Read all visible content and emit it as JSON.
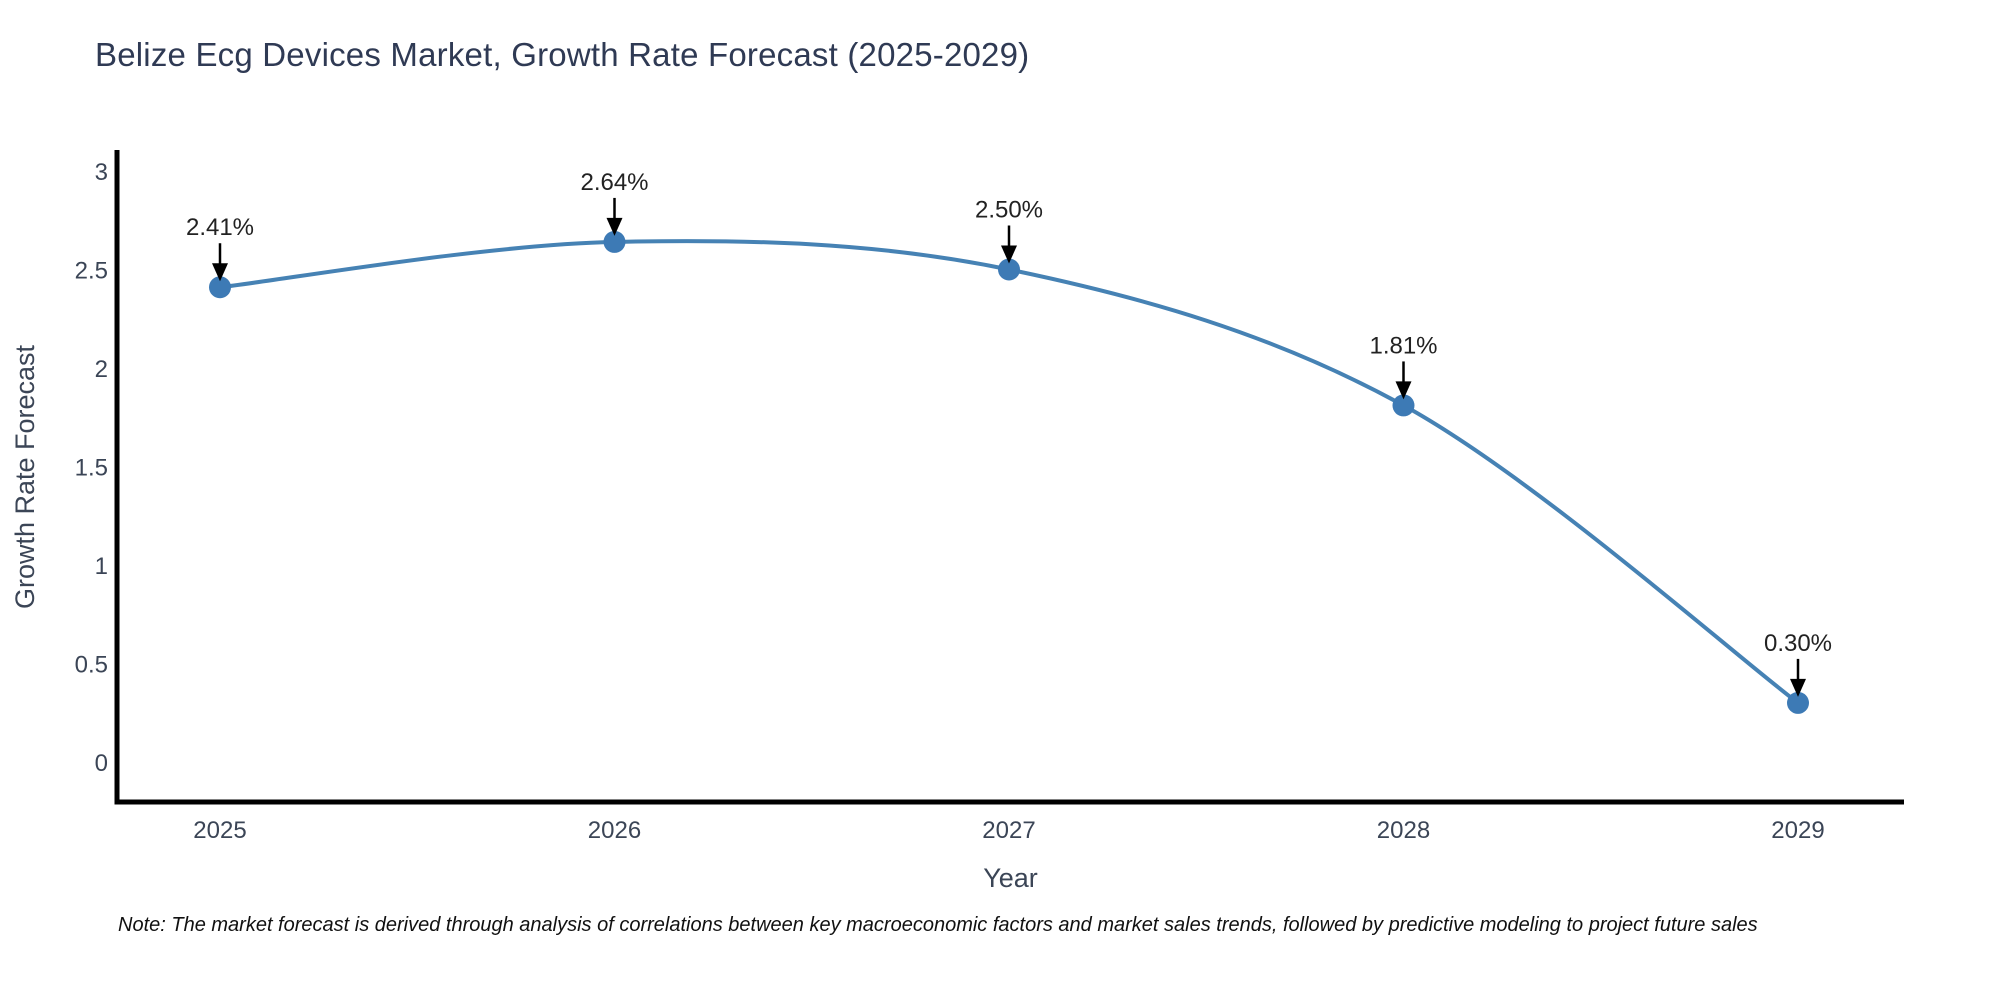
{
  "title": "Belize Ecg Devices Market, Growth Rate Forecast (2025-2029)",
  "note": "Note: The market forecast is derived through analysis of correlations between key macroeconomic factors and market sales trends, followed by predictive modeling to project future sales",
  "chart_data": {
    "type": "line",
    "title": "Belize Ecg Devices Market, Growth Rate Forecast (2025-2029)",
    "x": [
      2025,
      2026,
      2027,
      2028,
      2029
    ],
    "values": [
      2.41,
      2.64,
      2.5,
      1.81,
      0.3
    ],
    "point_labels": [
      "2.41%",
      "2.64%",
      "2.50%",
      "1.81%",
      "0.30%"
    ],
    "xlabel": "Year",
    "ylabel": "Growth Rate Forecast",
    "ylim": [
      -0.21,
      3.1
    ],
    "y_ticks": [
      0,
      0.5,
      1,
      1.5,
      2,
      2.5,
      3
    ],
    "grid": false,
    "legend": "none",
    "line_color": "#4682b4",
    "marker_color": "#3d7ab5",
    "annotation_color": "#000000",
    "spine_color": "#000000"
  }
}
